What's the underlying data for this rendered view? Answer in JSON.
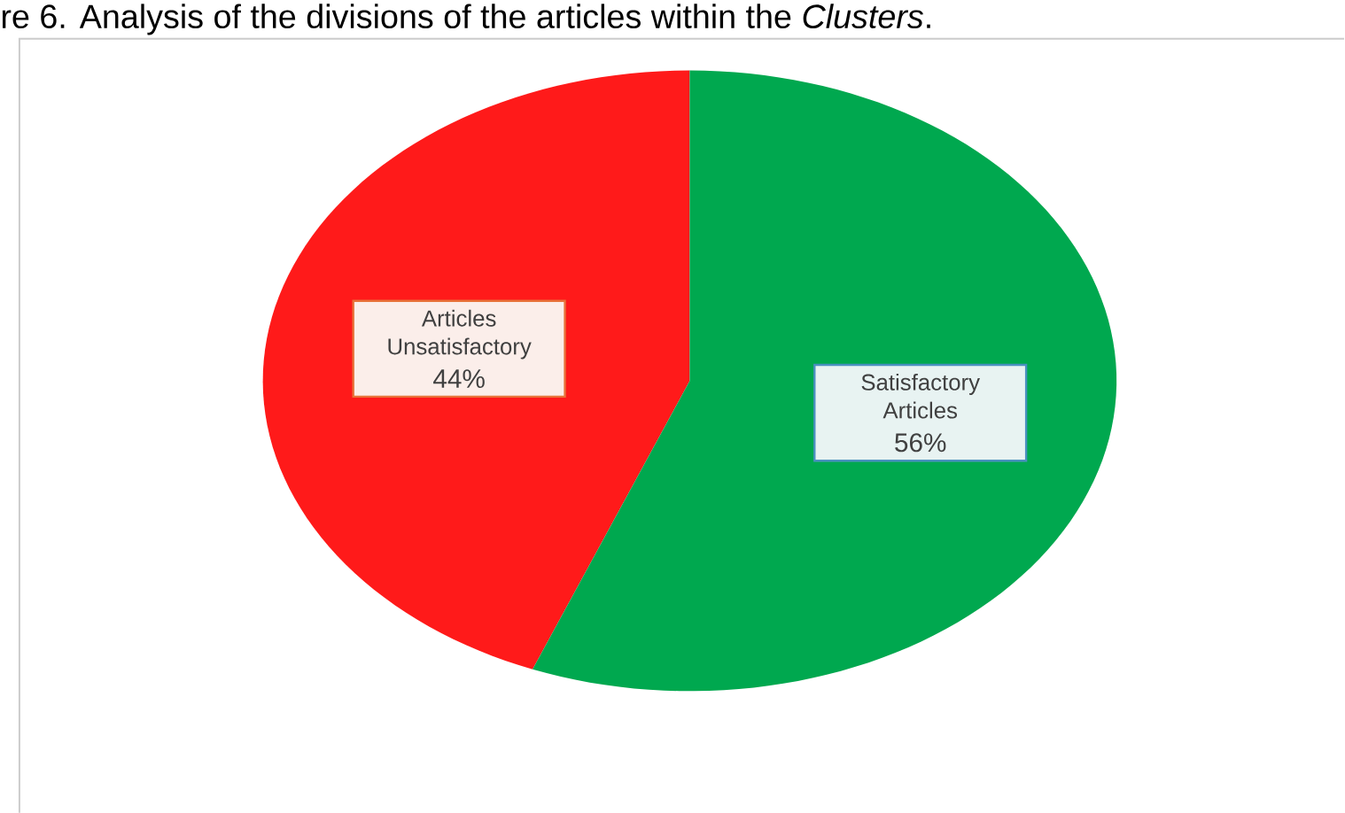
{
  "chart_data": {
    "type": "pie",
    "title": "re 6. Analysis of the divisions of the articles within the *Clusters*.",
    "categories": [
      "Articles Unsatisfactory",
      "Satisfactory Articles"
    ],
    "values": [
      44,
      56
    ],
    "value_labels": [
      "44%",
      "56%"
    ],
    "colors": [
      "#ff1a1a",
      "#00a84f"
    ]
  }
}
